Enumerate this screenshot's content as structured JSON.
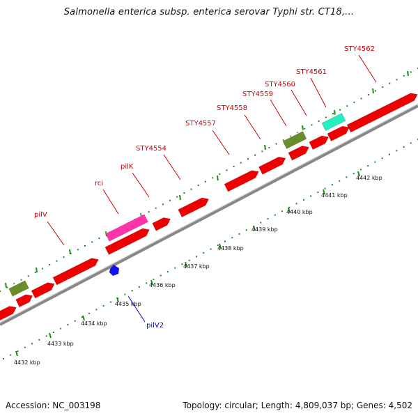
{
  "title": "Salmonella enterica subsp. enterica serovar Typhi str. CT18,...",
  "footer": {
    "accession": "Accession: NC_003198",
    "summary": "Topology: circular; Length: 4,809,037 bp; Genes: 4,502"
  },
  "colors": {
    "gene": "#ee0000",
    "gene_label": "#cc0000",
    "reverse_label": "#0000cc",
    "pseudo": "#6b8c2a",
    "magenta": "#ff33aa",
    "teal": "#22f0c0",
    "blue": "#1111ee",
    "ruler": "#1a8a1a",
    "backbone": "#888888"
  },
  "scale_labels": [
    "4432 kbp",
    "4433 kbp",
    "4434 kbp",
    "4435 kbp",
    "4436 kbp",
    "4437 kbp",
    "4438 kbp",
    "4439 kbp",
    "4440 kbp",
    "4441 kbp",
    "4442 kbp"
  ],
  "gene_labels": [
    "pilV",
    "rci",
    "pilK",
    "STY4554",
    "STY4557",
    "STY4558",
    "STY4559",
    "STY4560",
    "STY4561",
    "STY4562"
  ],
  "reverse_labels": [
    "pilV2"
  ]
}
